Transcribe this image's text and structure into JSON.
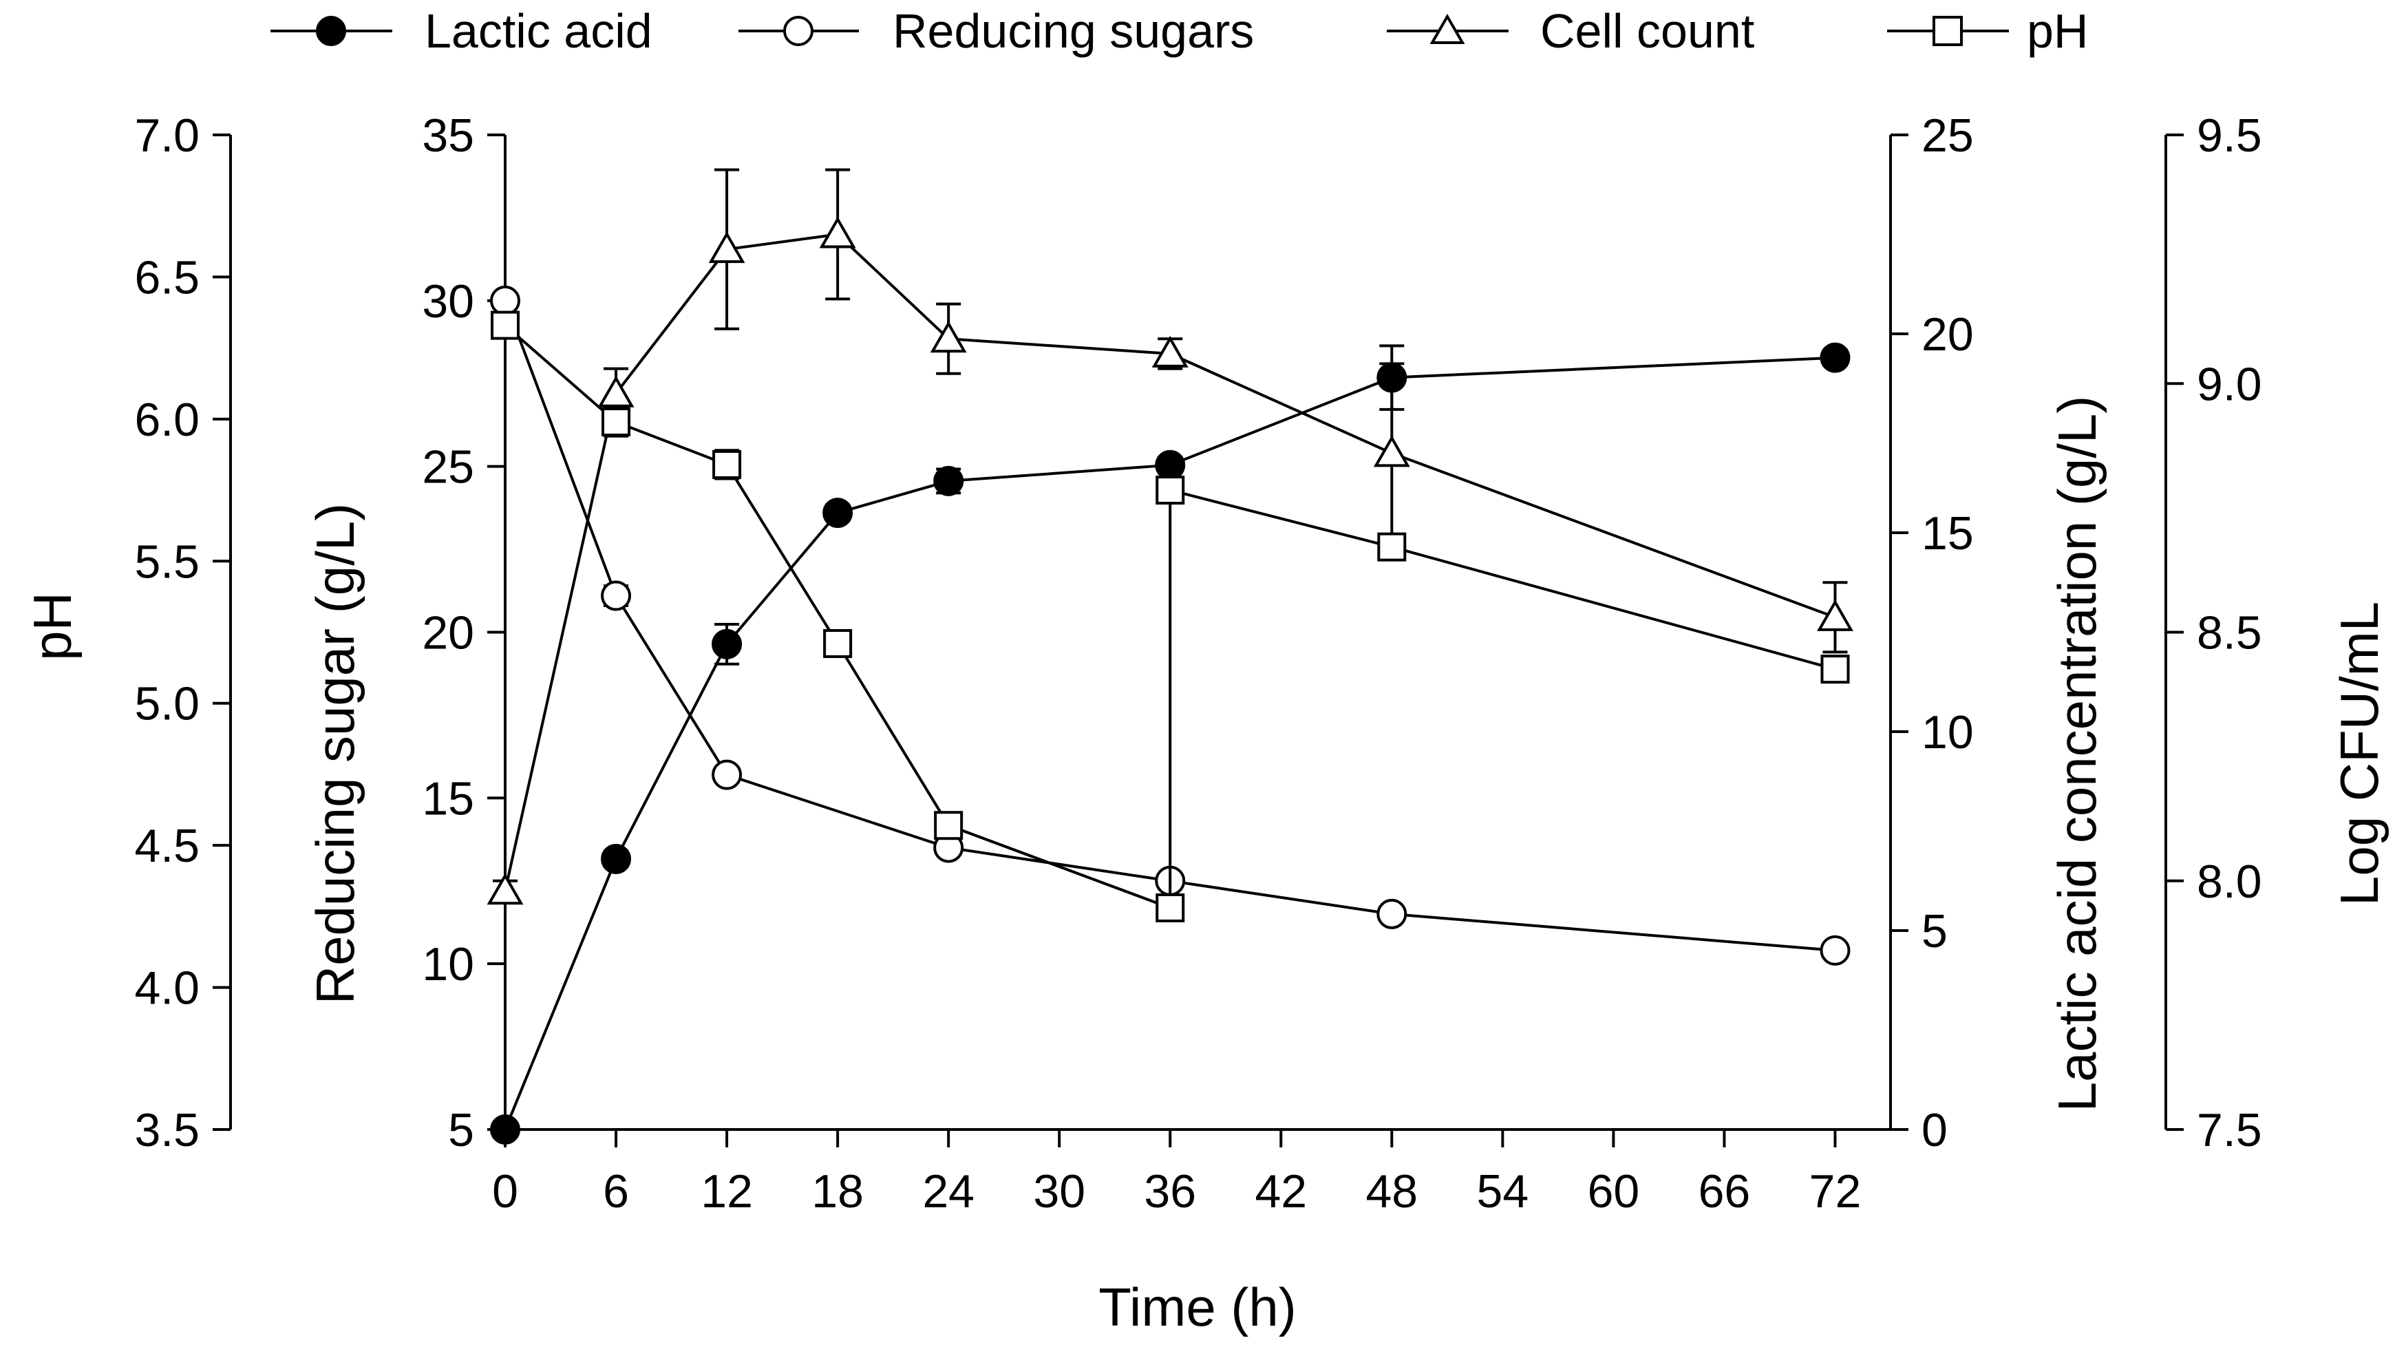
{
  "chart_data": {
    "type": "line",
    "title": "",
    "xlabel": "Time (h)",
    "xlim": [
      0,
      75
    ],
    "xticks": [
      0,
      6,
      12,
      18,
      24,
      30,
      36,
      42,
      48,
      54,
      60,
      66,
      72
    ],
    "axes": {
      "ph": {
        "label": "pH",
        "range": [
          3.5,
          7.0
        ],
        "ticks": [
          "3.5",
          "4.0",
          "4.5",
          "5.0",
          "5.5",
          "6.0",
          "6.5",
          "7.0"
        ]
      },
      "sugar": {
        "label": "Reducing sugar (g/L)",
        "range": [
          5,
          35
        ],
        "ticks": [
          "5",
          "10",
          "15",
          "20",
          "25",
          "30",
          "35"
        ]
      },
      "lactic": {
        "label": "Lactic acid concentration (g/L)",
        "range": [
          0,
          25
        ],
        "ticks": [
          "0",
          "5",
          "10",
          "15",
          "20",
          "25"
        ]
      },
      "cfu": {
        "label": "Log CFU/mL",
        "range": [
          7.5,
          9.5
        ],
        "ticks": [
          "7.5",
          "8.0",
          "8.5",
          "9.0",
          "9.5"
        ]
      }
    },
    "series": [
      {
        "name": "Lactic acid",
        "marker": "filled-circle",
        "axis": "lactic",
        "x": [
          0,
          6,
          12,
          18,
          24,
          36,
          48,
          72
        ],
        "y": [
          0.0,
          6.8,
          12.2,
          15.5,
          16.3,
          16.7,
          18.9,
          19.4
        ],
        "err": [
          0.0,
          0.2,
          0.5,
          0.2,
          0.3,
          0.2,
          0.8,
          0.2
        ]
      },
      {
        "name": "Reducing sugars",
        "marker": "open-circle",
        "axis": "sugar",
        "x": [
          0,
          6,
          12,
          18,
          24,
          36,
          48,
          72
        ],
        "y": [
          30.0,
          21.1,
          15.7,
          null,
          13.5,
          12.5,
          11.5,
          10.4
        ],
        "err": [
          0.2,
          0.3,
          0.2,
          null,
          0.2,
          0.2,
          0.1,
          0.1
        ]
      },
      {
        "name": "Cell count",
        "marker": "open-triangle",
        "axis": "cfu",
        "x": [
          0,
          6,
          12,
          18,
          24,
          36,
          48,
          72
        ],
        "y": [
          7.98,
          8.98,
          9.27,
          9.3,
          9.09,
          9.06,
          8.86,
          8.53
        ],
        "err": [
          0.02,
          0.05,
          0.16,
          0.13,
          0.07,
          0.03,
          0.18,
          0.07
        ]
      },
      {
        "name": "pH",
        "marker": "open-square",
        "axis": "ph",
        "x": [
          0,
          6,
          12,
          18,
          24,
          36,
          36,
          48,
          72
        ],
        "y": [
          6.33,
          5.99,
          5.84,
          5.21,
          4.57,
          4.28,
          5.75,
          5.55,
          5.12
        ],
        "err": [
          0.02,
          0.05,
          0.05,
          0.02,
          0.02,
          0.03,
          0.02,
          0.02,
          0.03
        ]
      }
    ],
    "legend": {
      "position": "top",
      "entries": [
        "Lactic acid",
        "Reducing sugars",
        "Cell count",
        "pH"
      ]
    },
    "grid": false
  }
}
